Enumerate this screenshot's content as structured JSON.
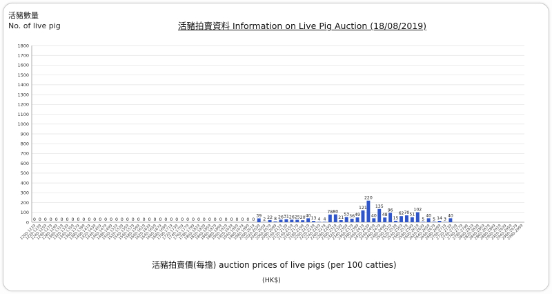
{
  "chart_data": {
    "type": "bar",
    "title": "活豬拍賣資料 Information on Live Pig Auction (18/08/2019)",
    "ylabel_zh": "活豬數量",
    "ylabel": "No. of live pig",
    "xlabel": "活豬拍賣價(每擔) auction prices of live pigs (per 100 catties)",
    "xunit": "(HK$)",
    "ylim": [
      0,
      1800
    ],
    "yticks": [
      0,
      100,
      200,
      300,
      400,
      500,
      600,
      700,
      800,
      900,
      1000,
      1100,
      1200,
      1300,
      1400,
      1500,
      1600,
      1700,
      1800
    ],
    "grid": true,
    "bar_color": "#2f55c7",
    "categories": [
      "1200-1219",
      "1220-1239",
      "1240-1259",
      "1260-1279",
      "1280-1299",
      "1300-1319",
      "1320-1339",
      "1340-1359",
      "1360-1379",
      "1380-1399",
      "1400-1419",
      "1420-1439",
      "1440-1459",
      "1460-1479",
      "1480-1499",
      "1500-1519",
      "1520-1539",
      "1540-1559",
      "1560-1579",
      "1580-1599",
      "1600-1619",
      "1620-1639",
      "1640-1659",
      "1660-1679",
      "1680-1699",
      "1700-1719",
      "1720-1739",
      "1740-1759",
      "1760-1779",
      "1780-1799",
      "1800-1819",
      "1820-1839",
      "1840-1859",
      "1860-1879",
      "1880-1899",
      "1900-1919",
      "1920-1939",
      "1940-1959",
      "1960-1979",
      "1980-1999",
      "2000-2019",
      "2020-2039",
      "2040-2059",
      "2060-2079",
      "2080-2099",
      "2100-2119",
      "2120-2139",
      "2140-2159",
      "2160-2179",
      "2180-2199",
      "2200-2219",
      "2220-2239",
      "2240-2259",
      "2260-2279",
      "2280-2299",
      "2300-2319",
      "2320-2339",
      "2340-2359",
      "2360-2379",
      "2380-2399",
      "2400-2419",
      "2420-2439",
      "2440-2459",
      "2460-2479",
      "2480-2499",
      "2500-2519",
      "2520-2539",
      "2540-2559",
      "2560-2579",
      "2580-2599",
      "2600-2619",
      "2620-2639",
      "2640-2659",
      "2660-2679",
      "2680-2699",
      "2700-2719",
      "2720-2739",
      "2740-2759",
      "2760-2779",
      "2780-2799",
      "2800-2819",
      "2820-2839",
      "2840-2859",
      "2860-2879",
      "2880-2899",
      "2900-2919",
      "2920-2939",
      "2940-2959",
      "2960-2979",
      "2980-2999"
    ],
    "values": [
      0,
      0,
      0,
      0,
      0,
      0,
      0,
      0,
      0,
      0,
      0,
      0,
      0,
      0,
      0,
      0,
      0,
      0,
      0,
      0,
      0,
      0,
      0,
      0,
      0,
      0,
      0,
      0,
      0,
      0,
      0,
      0,
      0,
      0,
      0,
      0,
      0,
      0,
      0,
      0,
      0,
      39,
      2,
      22,
      8,
      26,
      31,
      26,
      25,
      20,
      40,
      13,
      4,
      4,
      78,
      80,
      21,
      53,
      36,
      49,
      121,
      220,
      40,
      135,
      48,
      96,
      15,
      62,
      70,
      51,
      102,
      5,
      40,
      5,
      14,
      3,
      40,
      0,
      0,
      0,
      0,
      0,
      0,
      0,
      0,
      0,
      0,
      0,
      0,
      0
    ],
    "labels": [
      "0",
      "0",
      "0",
      "0",
      "0",
      "0",
      "0",
      "0",
      "0",
      "0",
      "0",
      "0",
      "0",
      "0",
      "0",
      "0",
      "0",
      "0",
      "0",
      "0",
      "0",
      "0",
      "0",
      "0",
      "0",
      "0",
      "0",
      "0",
      "0",
      "0",
      "0",
      "0",
      "0",
      "0",
      "0",
      "0",
      "0",
      "0",
      "0",
      "0",
      "0",
      "39",
      "2",
      "22",
      "8",
      "26",
      "31",
      "26",
      "25",
      "20",
      "40",
      "13",
      "4",
      "4",
      "78",
      "80",
      "21",
      "53",
      "36",
      "49",
      "121",
      "220",
      "40",
      "135",
      "48",
      "96",
      "15",
      "62",
      "70",
      "51",
      "102",
      "5",
      "40",
      "5",
      "14",
      "3",
      "40",
      "",
      "",
      "",
      "",
      "",
      "",
      "",
      "",
      "",
      "",
      "",
      "",
      ""
    ]
  }
}
